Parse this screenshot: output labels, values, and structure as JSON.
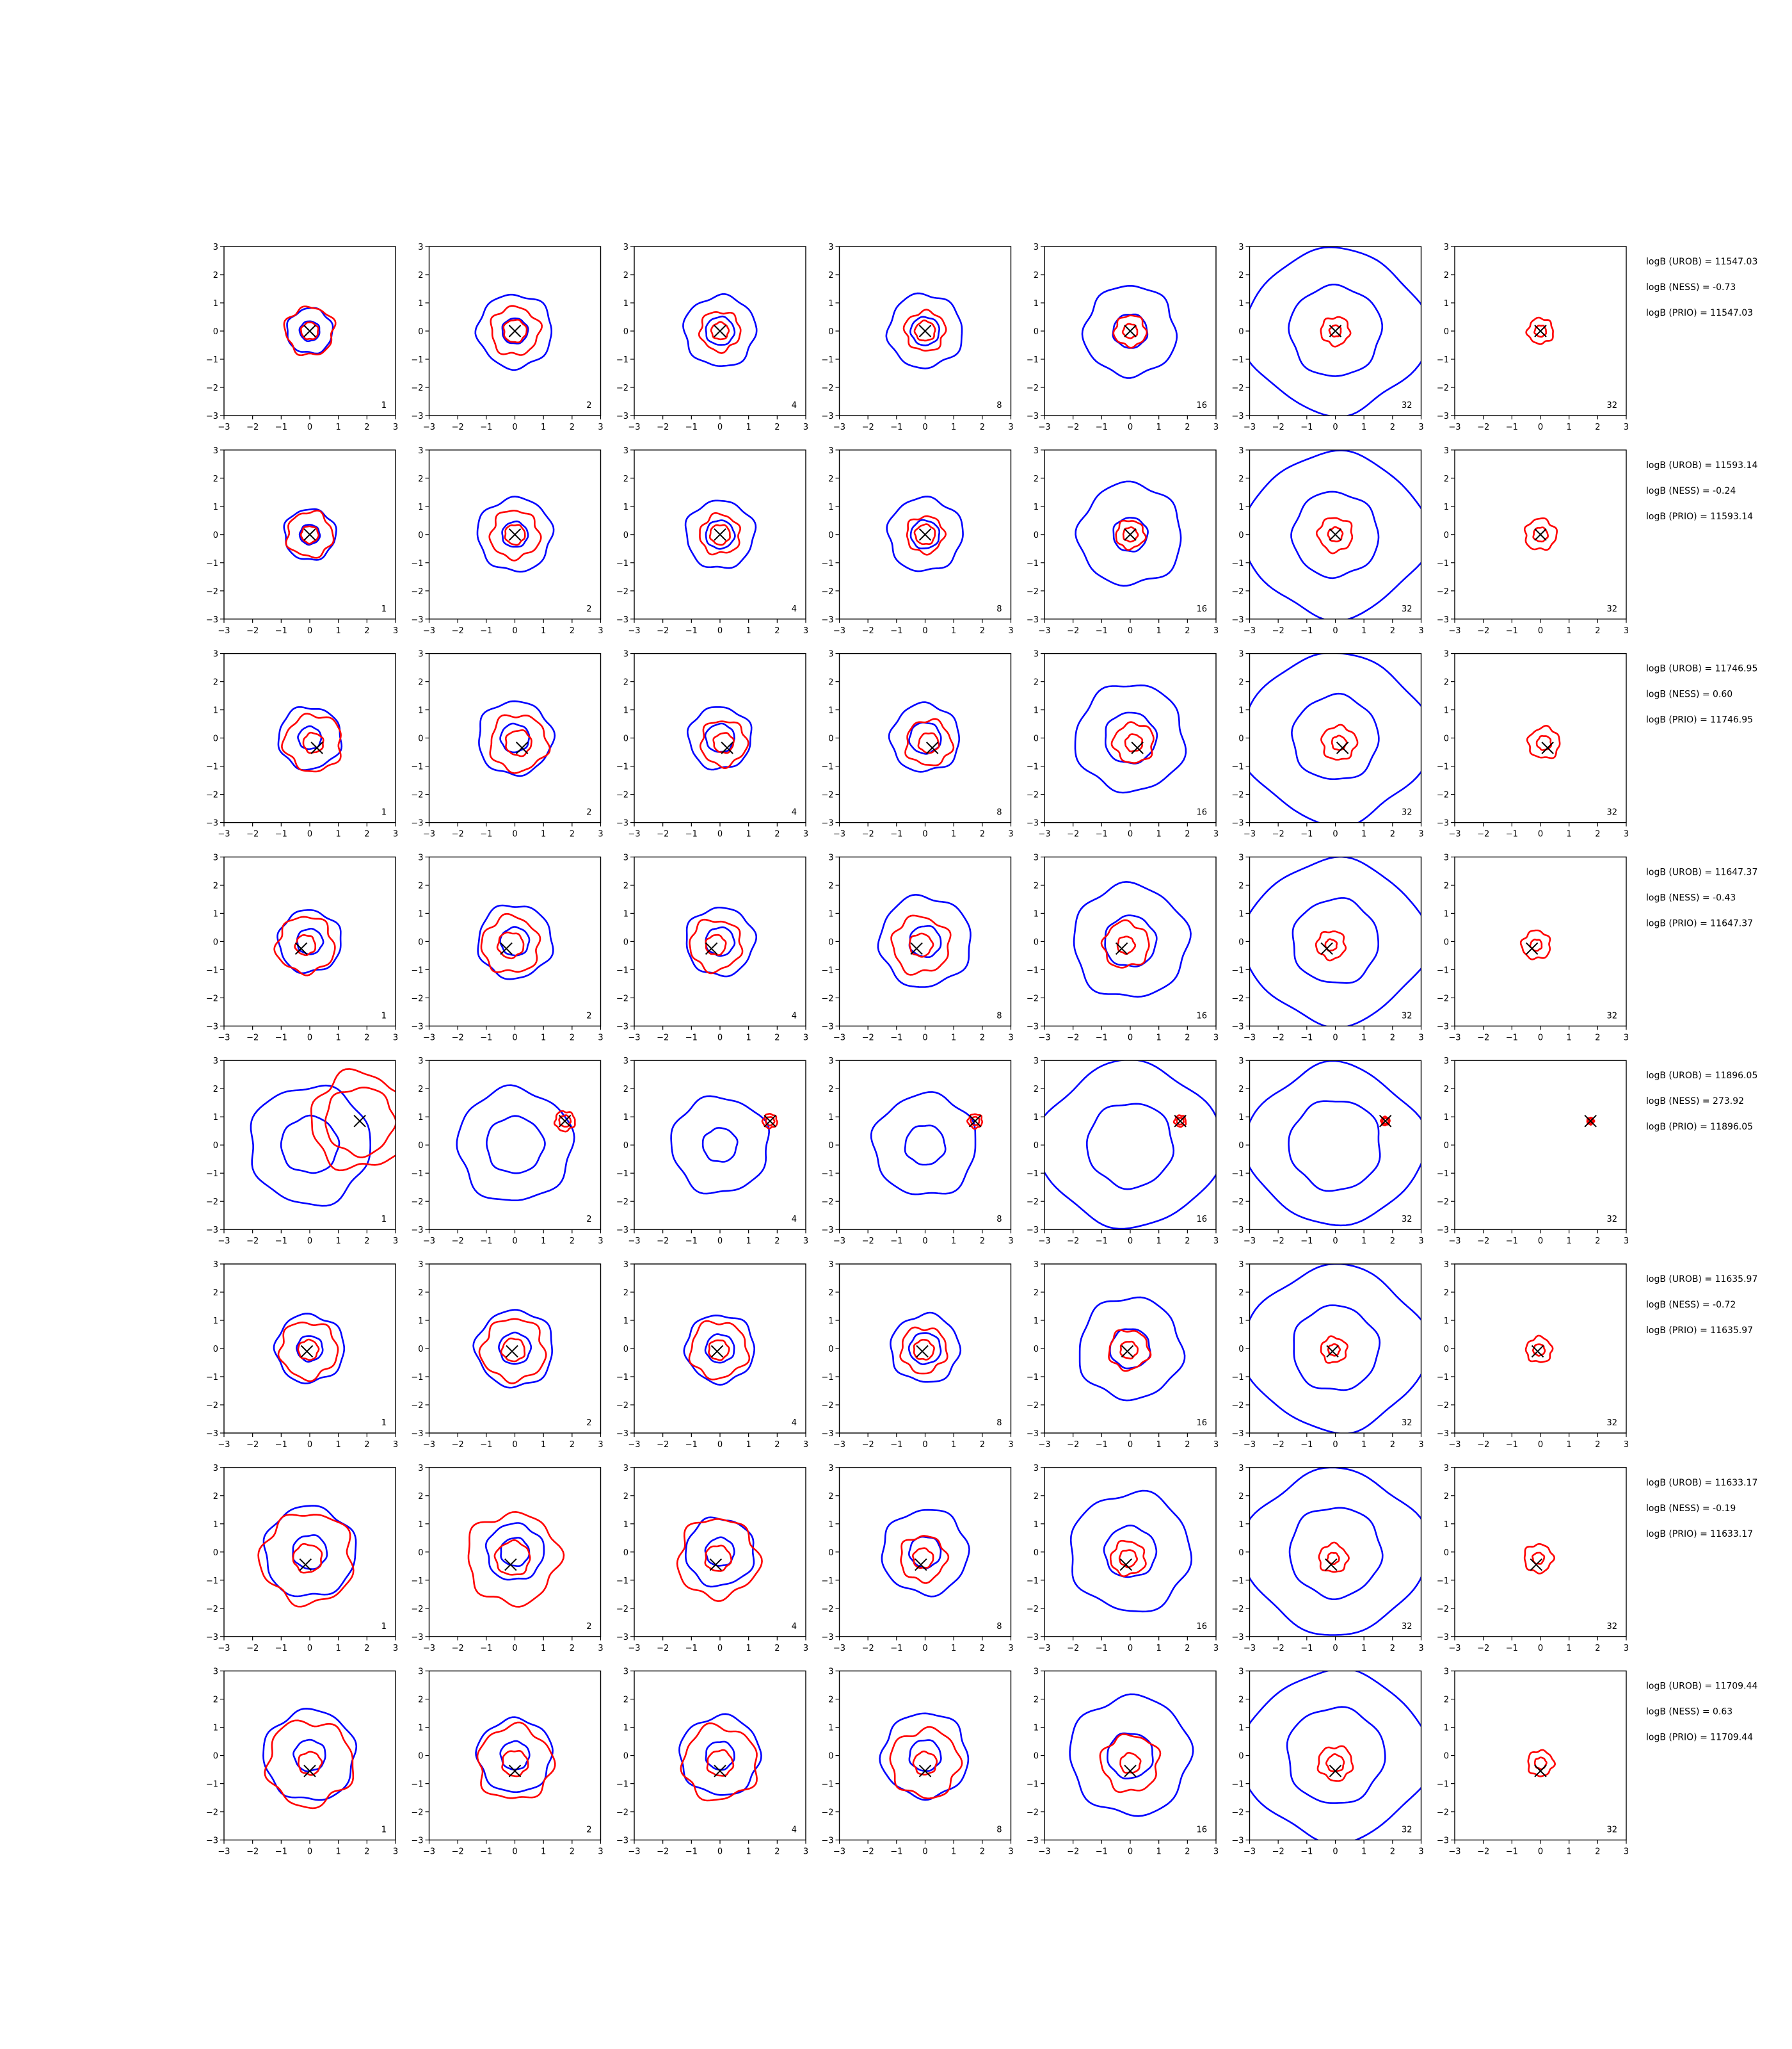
{
  "chart_data": {
    "type": "contour-grid",
    "title": "",
    "xlabel": "",
    "ylabel": "",
    "xlim": [
      -3,
      3
    ],
    "ylim": [
      -3,
      3
    ],
    "ticks": [
      "−3",
      "−2",
      "−1",
      "0",
      "1",
      "2",
      "3"
    ],
    "grid": false,
    "series_colors": {
      "blue": "#0000ff",
      "red": "#ff0000",
      "marker": "#000000"
    },
    "column_labels": [
      "1",
      "2",
      "4",
      "8",
      "16",
      "32",
      "32"
    ],
    "rows": [
      {
        "marker": [
          0.0,
          0.0
        ],
        "blue_r": [
          [
            0.8,
            0.35
          ],
          [
            1.3,
            0.45
          ],
          [
            1.25,
            0.5
          ],
          [
            1.3,
            0.5
          ],
          [
            1.6,
            0.6
          ],
          [
            3.3,
            1.6
          ],
          [
            0,
            0
          ]
        ],
        "red_r": [
          [
            0.85,
            0.3
          ],
          [
            0.85,
            0.4
          ],
          [
            0.7,
            0.3
          ],
          [
            0.7,
            0.35
          ],
          [
            0.55,
            0.25
          ],
          [
            0.5,
            0.2
          ],
          [
            0.45,
            0.2
          ]
        ],
        "labels": [
          "logB (UROB) = 11547.03",
          "logB (NESS) = -0.73",
          "logB (PRIO) = 11547.03"
        ]
      },
      {
        "marker": [
          0.0,
          0.0
        ],
        "blue_r": [
          [
            0.9,
            0.35
          ],
          [
            1.3,
            0.45
          ],
          [
            1.2,
            0.5
          ],
          [
            1.3,
            0.5
          ],
          [
            1.8,
            0.6
          ],
          [
            3.3,
            1.5
          ],
          [
            0,
            0
          ]
        ],
        "red_r": [
          [
            0.8,
            0.3
          ],
          [
            0.85,
            0.35
          ],
          [
            0.7,
            0.35
          ],
          [
            0.65,
            0.35
          ],
          [
            0.5,
            0.25
          ],
          [
            0.6,
            0.25
          ],
          [
            0.55,
            0.25
          ]
        ],
        "labels": [
          "logB (UROB) = 11593.14",
          "logB (NESS) = -0.24",
          "logB (PRIO) = 11593.14"
        ]
      },
      {
        "marker": [
          0.25,
          -0.35
        ],
        "blue_r": [
          [
            1.1,
            0.4
          ],
          [
            1.3,
            0.5
          ],
          [
            1.1,
            0.5
          ],
          [
            1.2,
            0.55
          ],
          [
            1.9,
            0.9
          ],
          [
            3.4,
            1.5
          ],
          [
            0,
            0
          ]
        ],
        "red_r": [
          [
            1.0,
            0.35
          ],
          [
            1.0,
            0.45
          ],
          [
            0.8,
            0.35
          ],
          [
            0.8,
            0.35
          ],
          [
            0.7,
            0.3
          ],
          [
            0.6,
            0.25
          ],
          [
            0.55,
            0.25
          ]
        ],
        "labels": [
          "logB (UROB) = 11746.95",
          "logB (NESS) = 0.60",
          "logB (PRIO) = 11746.95"
        ]
      },
      {
        "marker": [
          -0.3,
          -0.25
        ],
        "blue_r": [
          [
            1.1,
            0.45
          ],
          [
            1.3,
            0.5
          ],
          [
            1.2,
            0.5
          ],
          [
            1.6,
            0.55
          ],
          [
            2.0,
            0.9
          ],
          [
            3.3,
            1.5
          ],
          [
            0,
            0
          ]
        ],
        "red_r": [
          [
            1.0,
            0.35
          ],
          [
            1.0,
            0.45
          ],
          [
            0.9,
            0.35
          ],
          [
            1.0,
            0.4
          ],
          [
            0.8,
            0.3
          ],
          [
            0.5,
            0.2
          ],
          [
            0.5,
            0.2
          ]
        ],
        "labels": [
          "logB (UROB) = 11647.37",
          "logB (NESS) = -0.43",
          "logB (PRIO) = 11647.37"
        ]
      },
      {
        "marker": [
          1.75,
          0.85
        ],
        "blue_r": [
          [
            2.1,
            1.0
          ],
          [
            2.0,
            1.0
          ],
          [
            1.7,
            0.6
          ],
          [
            1.8,
            0.7
          ],
          [
            3.3,
            1.5
          ],
          [
            3.2,
            1.6
          ],
          [
            0,
            0
          ]
        ],
        "red_r": [
          [
            1.7,
            1.2
          ],
          [
            0.35,
            0.2
          ],
          [
            0.25,
            0.15
          ],
          [
            0.25,
            0.15
          ],
          [
            0.2,
            0.12
          ],
          [
            0.15,
            0.1
          ],
          [
            0.12,
            0.08
          ]
        ],
        "labels": [
          "logB (UROB) = 11896.05",
          "logB (NESS) = 273.92",
          "logB (PRIO) = 11896.05"
        ]
      },
      {
        "marker": [
          -0.1,
          -0.1
        ],
        "blue_r": [
          [
            1.2,
            0.45
          ],
          [
            1.35,
            0.55
          ],
          [
            1.2,
            0.5
          ],
          [
            1.2,
            0.55
          ],
          [
            1.8,
            0.7
          ],
          [
            3.3,
            1.5
          ],
          [
            0,
            0
          ]
        ],
        "red_r": [
          [
            1.0,
            0.35
          ],
          [
            1.1,
            0.4
          ],
          [
            1.0,
            0.35
          ],
          [
            0.8,
            0.35
          ],
          [
            0.7,
            0.3
          ],
          [
            0.45,
            0.2
          ],
          [
            0.45,
            0.2
          ]
        ],
        "labels": [
          "logB (UROB) = 11635.97",
          "logB (NESS) = -0.72",
          "logB (PRIO) = 11635.97"
        ]
      },
      {
        "marker": [
          -0.15,
          -0.45
        ],
        "blue_r": [
          [
            1.6,
            0.6
          ],
          [
            1.0,
            0.5
          ],
          [
            1.2,
            0.5
          ],
          [
            1.5,
            0.55
          ],
          [
            2.1,
            0.9
          ],
          [
            3.3,
            1.6
          ],
          [
            0,
            0
          ]
        ],
        "red_r": [
          [
            1.6,
            0.5
          ],
          [
            1.6,
            0.6
          ],
          [
            1.4,
            0.45
          ],
          [
            0.8,
            0.35
          ],
          [
            0.6,
            0.3
          ],
          [
            0.5,
            0.2
          ],
          [
            0.5,
            0.2
          ]
        ],
        "labels": [
          "logB (UROB) = 11633.17",
          "logB (NESS) = -0.19",
          "logB (PRIO) = 11633.17"
        ]
      },
      {
        "marker": [
          0.0,
          -0.55
        ],
        "blue_r": [
          [
            1.6,
            0.55
          ],
          [
            1.3,
            0.5
          ],
          [
            1.4,
            0.5
          ],
          [
            1.5,
            0.55
          ],
          [
            2.1,
            0.8
          ],
          [
            3.4,
            1.7
          ],
          [
            0,
            0
          ]
        ],
        "red_r": [
          [
            1.5,
            0.4
          ],
          [
            1.3,
            0.45
          ],
          [
            1.3,
            0.45
          ],
          [
            1.2,
            0.4
          ],
          [
            1.0,
            0.35
          ],
          [
            0.6,
            0.3
          ],
          [
            0.45,
            0.2
          ]
        ],
        "labels": [
          "logB (UROB) = 11709.44",
          "logB (NESS) = 0.63",
          "logB (PRIO) = 11709.44"
        ]
      }
    ]
  }
}
